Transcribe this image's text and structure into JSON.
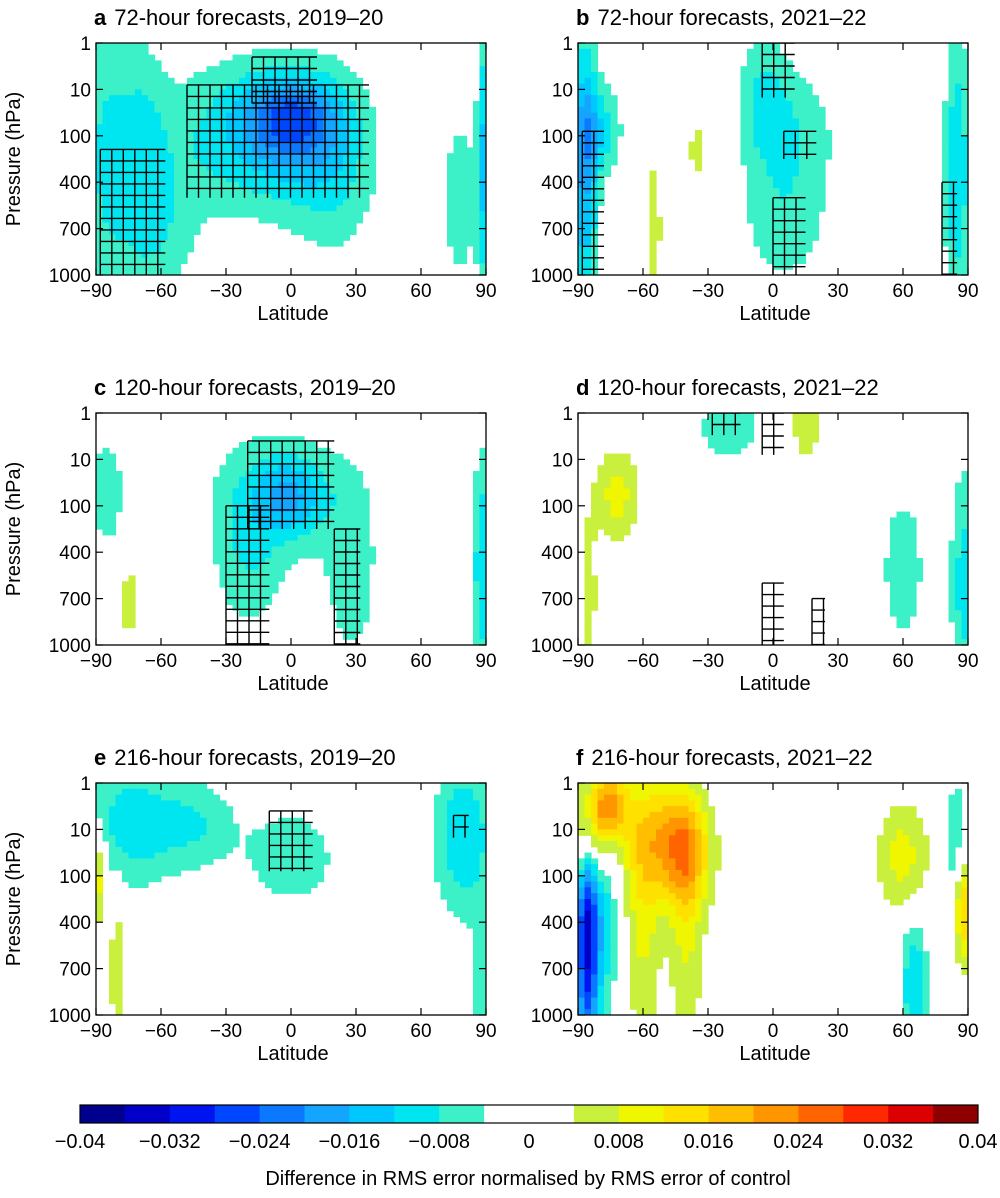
{
  "colorbar": {
    "label": "Difference in RMS error normalised by RMS error of control",
    "range": [
      -0.04,
      0.04
    ],
    "step": 0.004,
    "tick_labels": [
      "−0.04",
      "−0.032",
      "−0.024",
      "−0.016",
      "−0.008",
      "0",
      "0.008",
      "0.016",
      "0.024",
      "0.032",
      "0.04"
    ],
    "colors": [
      "#00008e",
      "#0000c8",
      "#0014f0",
      "#0046ff",
      "#0a78ff",
      "#14a5ff",
      "#00c8ff",
      "#00e6f0",
      "#3cf0c8",
      "#ffffff",
      "#ffffff",
      "#c8f03c",
      "#f0f500",
      "#ffe100",
      "#ffbe00",
      "#ff9600",
      "#ff6400",
      "#ff2800",
      "#dc0000",
      "#8e0000"
    ]
  },
  "chart_data": [
    {
      "type": "heatmap",
      "letter": "a",
      "title": "72-hour forecasts, 2019–20",
      "xlabel": "Latitude",
      "ylabel": "Pressure (hPa)",
      "xlim": [
        -90,
        90
      ],
      "x_ticks": [
        -90,
        -60,
        -30,
        0,
        30,
        60,
        90
      ],
      "x_tick_labels": [
        "−90",
        "−60",
        "−30",
        "0",
        "30",
        "60",
        "90"
      ],
      "y_ticks": [
        1,
        10,
        100,
        400,
        700,
        1000
      ],
      "y_tick_labels": [
        "1",
        "10",
        "100",
        "400",
        "700",
        "1000"
      ],
      "y_axis": "pressure, inverted, 1 hPa at top",
      "hatch": "crosses mark significant differences",
      "blobs": [
        {
          "lat": -85,
          "level": 200,
          "width": 12,
          "height": 3.4,
          "value": -0.008
        },
        {
          "lat": -68,
          "level": 150,
          "width": 10,
          "height": 2.5,
          "value": -0.006
        },
        {
          "lat": -60,
          "level": 700,
          "width": 18,
          "height": 1.6,
          "value": -0.006
        },
        {
          "lat": -30,
          "level": 100,
          "width": 40,
          "height": 1.7,
          "value": -0.007
        },
        {
          "lat": 0,
          "level": 40,
          "width": 20,
          "height": 0.8,
          "value": -0.013
        },
        {
          "lat": 0,
          "level": 100,
          "width": 30,
          "height": 1.5,
          "value": -0.01
        },
        {
          "lat": 20,
          "level": 300,
          "width": 20,
          "height": 2.0,
          "value": -0.006
        },
        {
          "lat": 78,
          "level": 500,
          "width": 10,
          "height": 2.2,
          "value": -0.006
        },
        {
          "lat": 89,
          "level": 200,
          "width": 3,
          "height": 3.0,
          "value": -0.012
        }
      ],
      "hatch_regions": [
        {
          "lat_min": -88,
          "lat_max": -58,
          "level_min": 150,
          "level_max": 1000
        },
        {
          "lat_min": -48,
          "lat_max": 36,
          "level_min": 8,
          "level_max": 500
        },
        {
          "lat_min": -18,
          "lat_max": 12,
          "level_min": 2,
          "level_max": 20
        }
      ]
    },
    {
      "type": "heatmap",
      "letter": "b",
      "title": "72-hour forecasts, 2021–22",
      "xlabel": "Latitude",
      "ylabel": "",
      "xlim": [
        -90,
        90
      ],
      "x_ticks": [
        -90,
        -60,
        -30,
        0,
        30,
        60,
        90
      ],
      "x_tick_labels": [
        "−90",
        "−60",
        "−30",
        "0",
        "30",
        "60",
        "90"
      ],
      "y_ticks": [
        1,
        10,
        100,
        400,
        700,
        1000
      ],
      "y_tick_labels": [
        "1",
        "10",
        "100",
        "400",
        "700",
        "1000"
      ],
      "y_axis": "pressure, inverted, 1 hPa at top",
      "hatch": "crosses mark significant differences",
      "blobs": [
        {
          "lat": -87,
          "level": 300,
          "width": 6,
          "height": 3.2,
          "value": -0.016
        },
        {
          "lat": -80,
          "level": 80,
          "width": 10,
          "height": 1.0,
          "value": -0.01
        },
        {
          "lat": -5,
          "level": 15,
          "width": 12,
          "height": 1.5,
          "value": -0.007
        },
        {
          "lat": 10,
          "level": 100,
          "width": 20,
          "height": 1.5,
          "value": -0.007
        },
        {
          "lat": 5,
          "level": 700,
          "width": 20,
          "height": 1.3,
          "value": -0.006
        },
        {
          "lat": 85,
          "level": 300,
          "width": 6,
          "height": 3.0,
          "value": -0.012
        },
        {
          "lat": -55,
          "level": 700,
          "width": 4,
          "height": 2.0,
          "value": 0.006
        },
        {
          "lat": -35,
          "level": 150,
          "width": 6,
          "height": 1.0,
          "value": 0.005
        }
      ],
      "hatch_regions": [
        {
          "lat_min": -88,
          "lat_max": -78,
          "level_min": 80,
          "level_max": 1000
        },
        {
          "lat_min": -5,
          "lat_max": 10,
          "level_min": 1,
          "level_max": 15
        },
        {
          "lat_min": 5,
          "lat_max": 20,
          "level_min": 80,
          "level_max": 200
        },
        {
          "lat_min": 0,
          "lat_max": 15,
          "level_min": 500,
          "level_max": 1000
        },
        {
          "lat_min": 78,
          "lat_max": 85,
          "level_min": 400,
          "level_max": 1000
        }
      ]
    },
    {
      "type": "heatmap",
      "letter": "c",
      "title": "120-hour forecasts, 2019–20",
      "xlabel": "Latitude",
      "ylabel": "Pressure (hPa)",
      "xlim": [
        -90,
        90
      ],
      "x_ticks": [
        -90,
        -60,
        -30,
        0,
        30,
        60,
        90
      ],
      "x_tick_labels": [
        "−90",
        "−60",
        "−30",
        "0",
        "30",
        "60",
        "90"
      ],
      "y_ticks": [
        1,
        10,
        100,
        400,
        700,
        1000
      ],
      "y_tick_labels": [
        "1",
        "10",
        "100",
        "400",
        "700",
        "1000"
      ],
      "y_axis": "pressure, inverted, 1 hPa at top",
      "hatch": "crosses mark significant differences",
      "blobs": [
        {
          "lat": -85,
          "level": 50,
          "width": 10,
          "height": 1.5,
          "value": -0.006
        },
        {
          "lat": -75,
          "level": 700,
          "width": 4,
          "height": 1.2,
          "value": 0.006
        },
        {
          "lat": -10,
          "level": 60,
          "width": 30,
          "height": 1.5,
          "value": -0.007
        },
        {
          "lat": 0,
          "level": 60,
          "width": 16,
          "height": 0.8,
          "value": -0.011
        },
        {
          "lat": -20,
          "level": 500,
          "width": 16,
          "height": 1.6,
          "value": -0.006
        },
        {
          "lat": 28,
          "level": 500,
          "width": 14,
          "height": 2.5,
          "value": -0.006
        },
        {
          "lat": 88,
          "level": 500,
          "width": 4,
          "height": 2.5,
          "value": -0.012
        }
      ],
      "hatch_regions": [
        {
          "lat_min": -30,
          "lat_max": -10,
          "level_min": 100,
          "level_max": 1000
        },
        {
          "lat_min": -20,
          "lat_max": 20,
          "level_min": 4,
          "level_max": 200
        },
        {
          "lat_min": 20,
          "lat_max": 32,
          "level_min": 200,
          "level_max": 1000
        }
      ]
    },
    {
      "type": "heatmap",
      "letter": "d",
      "title": "120-hour forecasts, 2021–22",
      "xlabel": "Latitude",
      "ylabel": "",
      "xlim": [
        -90,
        90
      ],
      "x_ticks": [
        -90,
        -60,
        -30,
        0,
        30,
        60,
        90
      ],
      "x_tick_labels": [
        "−90",
        "−60",
        "−30",
        "0",
        "30",
        "60",
        "90"
      ],
      "y_ticks": [
        1,
        10,
        100,
        400,
        700,
        1000
      ],
      "y_tick_labels": [
        "1",
        "10",
        "100",
        "400",
        "700",
        "1000"
      ],
      "y_axis": "pressure, inverted, 1 hPa at top",
      "hatch": "crosses mark significant differences",
      "blobs": [
        {
          "lat": -72,
          "level": 60,
          "width": 10,
          "height": 1.0,
          "value": 0.01
        },
        {
          "lat": -85,
          "level": 700,
          "width": 4,
          "height": 2.0,
          "value": 0.006
        },
        {
          "lat": -20,
          "level": 2,
          "width": 16,
          "height": 0.8,
          "value": -0.007
        },
        {
          "lat": 15,
          "level": 2,
          "width": 6,
          "height": 0.8,
          "value": 0.008
        },
        {
          "lat": 88,
          "level": 600,
          "width": 6,
          "height": 2.5,
          "value": -0.01
        },
        {
          "lat": 60,
          "level": 500,
          "width": 12,
          "height": 2.0,
          "value": -0.006
        }
      ],
      "hatch_regions": [
        {
          "lat_min": -28,
          "lat_max": -15,
          "level_min": 1,
          "level_max": 3
        },
        {
          "lat_min": -5,
          "lat_max": 5,
          "level_min": 1,
          "level_max": 8
        },
        {
          "lat_min": -5,
          "lat_max": 5,
          "level_min": 600,
          "level_max": 1000
        },
        {
          "lat_min": 18,
          "lat_max": 24,
          "level_min": 700,
          "level_max": 1000
        }
      ]
    },
    {
      "type": "heatmap",
      "letter": "e",
      "title": "216-hour forecasts, 2019–20",
      "xlabel": "Latitude",
      "ylabel": "Pressure (hPa)",
      "xlim": [
        -90,
        90
      ],
      "x_ticks": [
        -90,
        -60,
        -30,
        0,
        30,
        60,
        90
      ],
      "x_tick_labels": [
        "−90",
        "−60",
        "−30",
        "0",
        "30",
        "60",
        "90"
      ],
      "y_ticks": [
        1,
        10,
        100,
        400,
        700,
        1000
      ],
      "y_tick_labels": [
        "1",
        "10",
        "100",
        "400",
        "700",
        "1000"
      ],
      "y_axis": "pressure, inverted, 1 hPa at top",
      "hatch": "crosses mark significant differences",
      "blobs": [
        {
          "lat": -75,
          "level": 8,
          "width": 20,
          "height": 1.4,
          "value": -0.01
        },
        {
          "lat": -45,
          "level": 8,
          "width": 20,
          "height": 1.0,
          "value": -0.008
        },
        {
          "lat": -88,
          "level": 100,
          "width": 3,
          "height": 1.0,
          "value": 0.012
        },
        {
          "lat": -80,
          "level": 700,
          "width": 4,
          "height": 1.8,
          "value": 0.007
        },
        {
          "lat": 0,
          "level": 40,
          "width": 20,
          "height": 1.0,
          "value": -0.008
        },
        {
          "lat": 80,
          "level": 15,
          "width": 14,
          "height": 1.7,
          "value": -0.012
        },
        {
          "lat": 87,
          "level": 800,
          "width": 4,
          "height": 1.2,
          "value": -0.008
        }
      ],
      "hatch_regions": [
        {
          "lat_min": -10,
          "lat_max": 10,
          "level_min": 4,
          "level_max": 80
        },
        {
          "lat_min": 75,
          "lat_max": 82,
          "level_min": 5,
          "level_max": 15
        }
      ]
    },
    {
      "type": "heatmap",
      "letter": "f",
      "title": "216-hour forecasts, 2021–22",
      "xlabel": "Latitude",
      "ylabel": "",
      "xlim": [
        -90,
        90
      ],
      "x_ticks": [
        -90,
        -60,
        -30,
        0,
        30,
        60,
        90
      ],
      "x_tick_labels": [
        "−90",
        "−60",
        "−30",
        "0",
        "30",
        "60",
        "90"
      ],
      "y_ticks": [
        1,
        10,
        100,
        400,
        700,
        1000
      ],
      "y_tick_labels": [
        "1",
        "10",
        "100",
        "400",
        "700",
        "1000"
      ],
      "y_axis": "pressure, inverted, 1 hPa at top",
      "hatch": "crosses mark significant differences",
      "blobs": [
        {
          "lat": -85,
          "level": 10,
          "width": 8,
          "height": 1.4,
          "value": 0.028
        },
        {
          "lat": -75,
          "level": 3,
          "width": 8,
          "height": 0.8,
          "value": 0.02
        },
        {
          "lat": -55,
          "level": 15,
          "width": 16,
          "height": 1.4,
          "value": 0.014
        },
        {
          "lat": -40,
          "level": 30,
          "width": 12,
          "height": 1.2,
          "value": 0.016
        },
        {
          "lat": -60,
          "level": 500,
          "width": 8,
          "height": 2.6,
          "value": 0.008
        },
        {
          "lat": -40,
          "level": 500,
          "width": 8,
          "height": 2.6,
          "value": 0.008
        },
        {
          "lat": -86,
          "level": 400,
          "width": 5,
          "height": 3.0,
          "value": -0.03
        },
        {
          "lat": -80,
          "level": 200,
          "width": 8,
          "height": 2.5,
          "value": -0.014
        },
        {
          "lat": 60,
          "level": 40,
          "width": 12,
          "height": 1.2,
          "value": 0.01
        },
        {
          "lat": 88,
          "level": 250,
          "width": 4,
          "height": 1.2,
          "value": 0.018
        },
        {
          "lat": 65,
          "level": 800,
          "width": 6,
          "height": 1.5,
          "value": -0.012
        },
        {
          "lat": 85,
          "level": 20,
          "width": 6,
          "height": 1.5,
          "value": -0.008
        }
      ],
      "hatch_regions": []
    }
  ]
}
